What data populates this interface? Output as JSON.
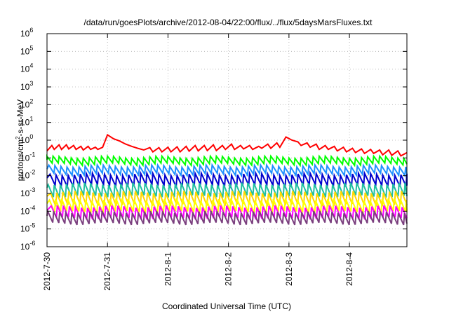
{
  "chart_data": {
    "type": "line",
    "title": "/data/run/goesPlots/archive/2012-08-04/22:00/flux/../flux/5daysMarsFluxes.txt",
    "xlabel": "Coordinated Universal Time (UTC)",
    "ylabel": {
      "base": "protons/cm",
      "sup": "2",
      "rest": "-s-sr-MeV"
    },
    "x_unit": "days since 2012-7-30 00:00 UTC",
    "xlim": [
      0,
      5.95
    ],
    "x_ticks": [
      {
        "x": 0,
        "label": "2012-7-30"
      },
      {
        "x": 1,
        "label": "2012-7-31"
      },
      {
        "x": 2,
        "label": "2012-8-1"
      },
      {
        "x": 3,
        "label": "2012-8-2"
      },
      {
        "x": 4,
        "label": "2012-8-3"
      },
      {
        "x": 5,
        "label": "2012-8-4"
      }
    ],
    "y_scale": "log",
    "ylim": [
      1e-06,
      1000000.0
    ],
    "y_ticks": [
      {
        "exp": -6,
        "base": "10",
        "sup": "-6"
      },
      {
        "exp": -5,
        "base": "10",
        "sup": "-5"
      },
      {
        "exp": -4,
        "base": "10",
        "sup": "-4"
      },
      {
        "exp": -3,
        "base": "10",
        "sup": "-3"
      },
      {
        "exp": -2,
        "base": "10",
        "sup": "-2"
      },
      {
        "exp": -1,
        "base": "10",
        "sup": "-1"
      },
      {
        "exp": 0,
        "base": "10",
        "sup": "0"
      },
      {
        "exp": 1,
        "base": "10",
        "sup": "1"
      },
      {
        "exp": 2,
        "base": "10",
        "sup": "2"
      },
      {
        "exp": 3,
        "base": "10",
        "sup": "3"
      },
      {
        "exp": 4,
        "base": "10",
        "sup": "4"
      },
      {
        "exp": 5,
        "base": "10",
        "sup": "5"
      },
      {
        "exp": 6,
        "base": "10",
        "sup": "6"
      }
    ],
    "grid": true,
    "legend": "none",
    "series": [
      {
        "color": "#ff0000",
        "x": [
          0,
          0.08,
          0.12,
          0.2,
          0.24,
          0.32,
          0.36,
          0.44,
          0.48,
          0.56,
          0.6,
          0.68,
          0.72,
          0.8,
          0.84,
          0.92,
          1.0,
          1.1,
          1.2,
          1.3,
          1.4,
          1.5,
          1.6,
          1.7,
          1.75,
          1.85,
          1.9,
          2.0,
          2.05,
          2.15,
          2.2,
          2.3,
          2.35,
          2.45,
          2.5,
          2.6,
          2.65,
          2.75,
          2.8,
          2.9,
          2.95,
          3.05,
          3.1,
          3.2,
          3.25,
          3.35,
          3.4,
          3.5,
          3.55,
          3.65,
          3.7,
          3.8,
          3.85,
          3.95,
          4.05,
          4.15,
          4.2,
          4.3,
          4.35,
          4.45,
          4.5,
          4.6,
          4.65,
          4.75,
          4.8,
          4.9,
          4.95,
          5.05,
          5.1,
          5.2,
          5.25,
          5.35,
          5.4,
          5.5,
          5.55,
          5.65,
          5.7,
          5.8,
          5.85,
          5.95
        ],
        "y": [
          0.25,
          0.5,
          0.3,
          0.55,
          0.3,
          0.55,
          0.32,
          0.5,
          0.3,
          0.45,
          0.28,
          0.45,
          0.3,
          0.4,
          0.3,
          0.4,
          2.0,
          1.2,
          0.9,
          0.6,
          0.45,
          0.35,
          0.28,
          0.38,
          0.22,
          0.38,
          0.22,
          0.4,
          0.22,
          0.42,
          0.22,
          0.45,
          0.24,
          0.5,
          0.25,
          0.5,
          0.26,
          0.55,
          0.26,
          0.5,
          0.3,
          0.6,
          0.3,
          0.5,
          0.32,
          0.5,
          0.3,
          0.45,
          0.35,
          0.6,
          0.35,
          0.7,
          0.4,
          1.5,
          1.0,
          0.8,
          0.5,
          0.7,
          0.4,
          0.6,
          0.3,
          0.5,
          0.3,
          0.45,
          0.25,
          0.4,
          0.22,
          0.35,
          0.2,
          0.32,
          0.18,
          0.3,
          0.18,
          0.28,
          0.15,
          0.28,
          0.14,
          0.25,
          0.13,
          0.2
        ]
      },
      {
        "color": "#00ff00",
        "period": 0.1,
        "phase": 0.0,
        "peak": 0.11,
        "trough": 0.045
      },
      {
        "color": "#1e90ff",
        "period": 0.1,
        "phase": 0.03,
        "peak": 0.035,
        "trough": 0.012
      },
      {
        "color": "#0000cd",
        "period": 0.1,
        "phase": 0.05,
        "peak": 0.012,
        "trough": 0.0028
      },
      {
        "color": "#20c0a0",
        "period": 0.1,
        "phase": 0.02,
        "peak": 0.0035,
        "trough": 0.0007
      },
      {
        "color": "#ffd700",
        "period": 0.1,
        "phase": 0.06,
        "peak": 0.0012,
        "trough": 0.00022
      },
      {
        "color": "#ffff00",
        "period": 0.1,
        "phase": 0.04,
        "peak": 0.00045,
        "trough": 9e-05
      },
      {
        "color": "#ff00ff",
        "period": 0.1,
        "phase": 0.07,
        "peak": 0.00018,
        "trough": 4e-05
      },
      {
        "color": "#7b3f7f",
        "period": 0.1,
        "phase": 0.01,
        "peak": 9e-05,
        "trough": 2e-05
      }
    ]
  }
}
